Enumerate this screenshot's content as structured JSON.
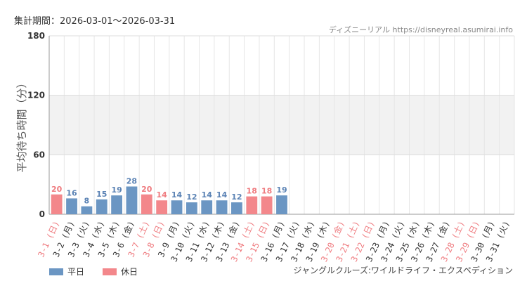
{
  "header": {
    "period_label": "集計期間：2026-03-01〜2026-03-31",
    "source": "ディズニーリアル https://disneyreal.asumirai.info"
  },
  "attraction_name": "ジャングルクルーズ:ワイルドライフ・エクスペディション",
  "legend": {
    "weekday_label": "平日",
    "holiday_label": "休日"
  },
  "colors": {
    "weekday": "#6b96c3",
    "holiday": "#f3878b",
    "weekday_text": "#5a82b4",
    "holiday_text": "#ef7c80",
    "band": "#f2f2f2",
    "grid": "#e6e6e6"
  },
  "chart_data": {
    "type": "bar",
    "ylabel": "平均待ち時間（分）",
    "ylim": [
      0,
      180
    ],
    "yticks": [
      0,
      60,
      120,
      180
    ],
    "shaded_band": [
      60,
      120
    ],
    "grid": true,
    "legend_position": "bottom-left",
    "categories": [
      "3-1 (日)",
      "3-2 (月)",
      "3-3 (火)",
      "3-4 (水)",
      "3-5 (木)",
      "3-6 (金)",
      "3-7 (土)",
      "3-8 (日)",
      "3-9 (月)",
      "3-10 (火)",
      "3-11 (水)",
      "3-12 (木)",
      "3-13 (金)",
      "3-14 (土)",
      "3-15 (日)",
      "3-16 (月)",
      "3-17 (火)",
      "3-18 (水)",
      "3-19 (木)",
      "3-20 (金)",
      "3-21 (土)",
      "3-22 (日)",
      "3-23 (月)",
      "3-24 (火)",
      "3-25 (水)",
      "3-26 (木)",
      "3-27 (金)",
      "3-28 (土)",
      "3-29 (日)",
      "3-30 (月)",
      "3-31 (火)"
    ],
    "holiday": [
      true,
      false,
      false,
      false,
      false,
      false,
      true,
      true,
      false,
      false,
      false,
      false,
      false,
      true,
      true,
      false,
      false,
      false,
      false,
      true,
      true,
      true,
      false,
      false,
      false,
      false,
      false,
      true,
      true,
      false,
      false
    ],
    "values": [
      20,
      16,
      8,
      15,
      19,
      28,
      20,
      14,
      14,
      12,
      14,
      14,
      12,
      18,
      18,
      19,
      null,
      null,
      null,
      null,
      null,
      null,
      null,
      null,
      null,
      null,
      null,
      null,
      null,
      null,
      null
    ]
  }
}
